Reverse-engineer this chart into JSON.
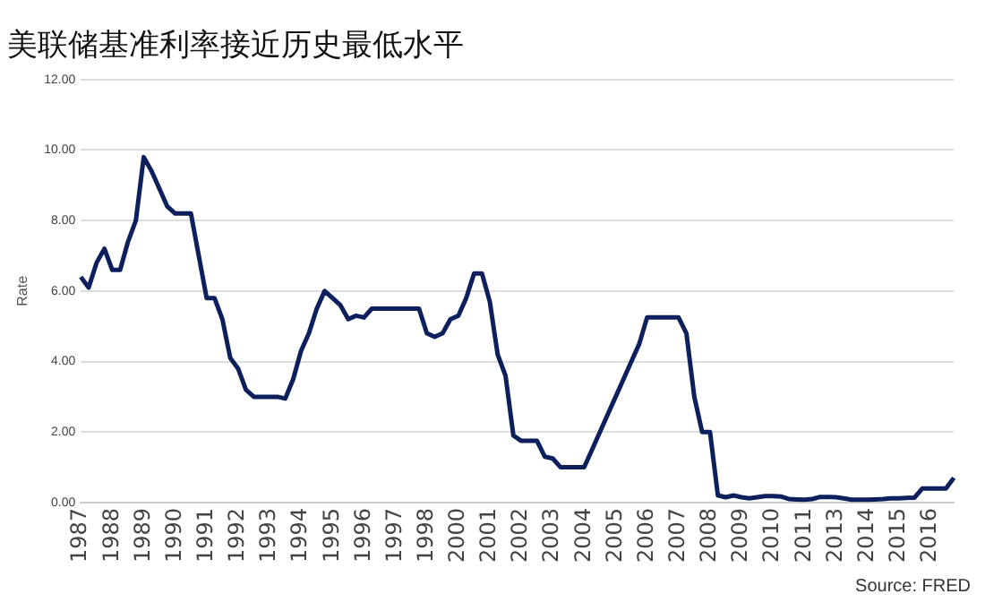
{
  "chart_data": {
    "type": "line",
    "title": "美联储基准利率接近历史最低水平",
    "ylabel": "Rate",
    "categories": [
      "1987",
      null,
      null,
      null,
      "1988",
      null,
      null,
      null,
      "1989",
      null,
      null,
      null,
      "1990",
      null,
      null,
      null,
      "1991",
      null,
      null,
      null,
      "1992",
      null,
      null,
      null,
      "1993",
      null,
      null,
      null,
      "1994",
      null,
      null,
      null,
      "1995",
      null,
      null,
      null,
      "1996",
      null,
      null,
      null,
      "1997",
      null,
      null,
      null,
      "1998",
      null,
      null,
      null,
      "2000",
      null,
      null,
      null,
      "2001",
      null,
      null,
      null,
      "2002",
      null,
      null,
      null,
      "2003",
      null,
      null,
      null,
      "2004",
      null,
      null,
      null,
      "2005",
      null,
      null,
      null,
      "2006",
      null,
      null,
      null,
      "2007",
      null,
      null,
      null,
      "2008",
      null,
      null,
      null,
      "2009",
      null,
      null,
      null,
      "2010",
      null,
      null,
      null,
      "2011",
      null,
      null,
      null,
      "2013",
      null,
      null,
      null,
      "2014",
      null,
      null,
      null,
      "2015",
      null,
      null,
      null,
      "2016",
      null,
      null,
      null
    ],
    "series": [
      {
        "color": "#0d1f5c",
        "values": [
          6.4,
          6.1,
          6.8,
          7.2,
          6.6,
          6.6,
          7.4,
          8.0,
          9.8,
          9.4,
          8.9,
          8.4,
          8.2,
          8.2,
          8.2,
          7.0,
          5.8,
          5.8,
          5.2,
          4.1,
          3.8,
          3.2,
          3.0,
          3.0,
          3.0,
          3.0,
          2.95,
          3.5,
          4.3,
          4.8,
          5.5,
          6.0,
          5.8,
          5.6,
          5.2,
          5.3,
          5.25,
          5.5,
          5.5,
          5.5,
          5.5,
          5.5,
          5.5,
          5.5,
          4.8,
          4.7,
          4.8,
          5.2,
          5.3,
          5.8,
          6.5,
          6.5,
          5.7,
          4.2,
          3.6,
          1.9,
          1.75,
          1.75,
          1.75,
          1.3,
          1.25,
          1.0,
          1.0,
          1.0,
          1.0,
          1.5,
          2.0,
          2.5,
          3.0,
          3.5,
          4.0,
          4.5,
          5.25,
          5.25,
          5.25,
          5.25,
          5.25,
          4.8,
          3.0,
          2.0,
          2.0,
          0.2,
          0.15,
          0.2,
          0.15,
          0.12,
          0.15,
          0.18,
          0.18,
          0.17,
          0.1,
          0.09,
          0.08,
          0.1,
          0.16,
          0.16,
          0.15,
          0.12,
          0.08,
          0.08,
          0.08,
          0.09,
          0.1,
          0.12,
          0.12,
          0.13,
          0.14,
          0.4,
          0.4,
          0.4,
          0.4,
          0.7
        ]
      }
    ],
    "ylim": [
      0,
      12
    ],
    "yticks": [
      {
        "value": 0,
        "label": "0.00"
      },
      {
        "value": 2,
        "label": "2.00"
      },
      {
        "value": 4,
        "label": "4.00"
      },
      {
        "value": 6,
        "label": "6.00"
      },
      {
        "value": 8,
        "label": "8.00"
      },
      {
        "value": 10,
        "label": "10.00"
      },
      {
        "value": 12,
        "label": "12.00"
      }
    ],
    "grid": "y",
    "legend": false,
    "marker": "none",
    "line_style": "solid",
    "annotations": [
      "Source: FRED"
    ]
  }
}
